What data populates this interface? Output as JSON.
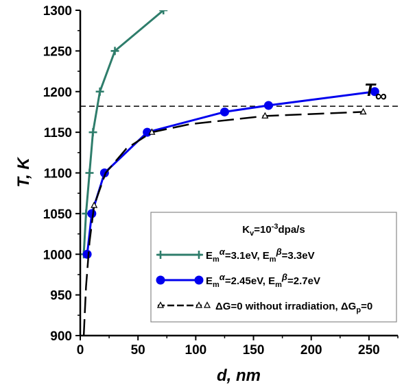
{
  "chart_data": {
    "type": "line",
    "xlabel": "d, nm",
    "ylabel": "T, K",
    "xlim": [
      0,
      275
    ],
    "ylim": [
      900,
      1300
    ],
    "x_ticks": [
      0,
      50,
      100,
      150,
      200,
      250
    ],
    "y_ticks": [
      900,
      950,
      1000,
      1050,
      1100,
      1150,
      1200,
      1250,
      1300
    ],
    "x_tick_labels": [
      "0",
      "50",
      "100",
      "150",
      "200",
      "250"
    ],
    "y_tick_labels": [
      "900",
      "950",
      "1000",
      "1050",
      "1100",
      "1150",
      "1200",
      "1250",
      "1300"
    ],
    "legend_location": "bottom-right",
    "legend_title": {
      "base": "K",
      "sub": "v",
      "mid": "=10",
      "sup": "-3",
      "tail": "dpa/s"
    },
    "series": [
      {
        "name": "Emα=3.1eV, Emβ=3.3eV",
        "legend_parts": [
          "E",
          "m",
          "α",
          "=3.1eV, E",
          "m",
          "β",
          "=3.3eV"
        ],
        "color": "#2e7d6b",
        "marker": "plus",
        "line": "solid",
        "x": [
          3,
          5,
          8,
          11,
          17,
          30,
          72
        ],
        "y": [
          1000,
          1050,
          1100,
          1150,
          1200,
          1250,
          1300
        ]
      },
      {
        "name": "Emα=2.45eV, Emβ=2.7eV",
        "legend_parts": [
          "E",
          "m",
          "α",
          "=2.45eV, E",
          "m",
          "β",
          "=2.7eV"
        ],
        "color": "#0000ee",
        "marker": "circle",
        "line": "solid",
        "x": [
          6,
          10,
          21,
          58,
          125,
          163,
          255
        ],
        "y": [
          1000,
          1050,
          1100,
          1150,
          1175,
          1183,
          1200
        ]
      },
      {
        "name": "ΔG=0 without irradiation, ΔGp=0",
        "legend_parts": [
          "ΔG=0 without  irradiation, ΔG",
          "p",
          "=0"
        ],
        "color": "#000000",
        "marker": "triangle",
        "line": "dashed",
        "x": [
          3,
          5,
          8,
          12,
          22,
          40,
          62,
          95,
          160,
          245
        ],
        "y": [
          900,
          960,
          1015,
          1060,
          1100,
          1130,
          1150,
          1160,
          1170,
          1175
        ]
      }
    ],
    "reference_line": {
      "label_base": "T",
      "label_sub": "∞",
      "y": 1182,
      "style": "dashed"
    }
  }
}
